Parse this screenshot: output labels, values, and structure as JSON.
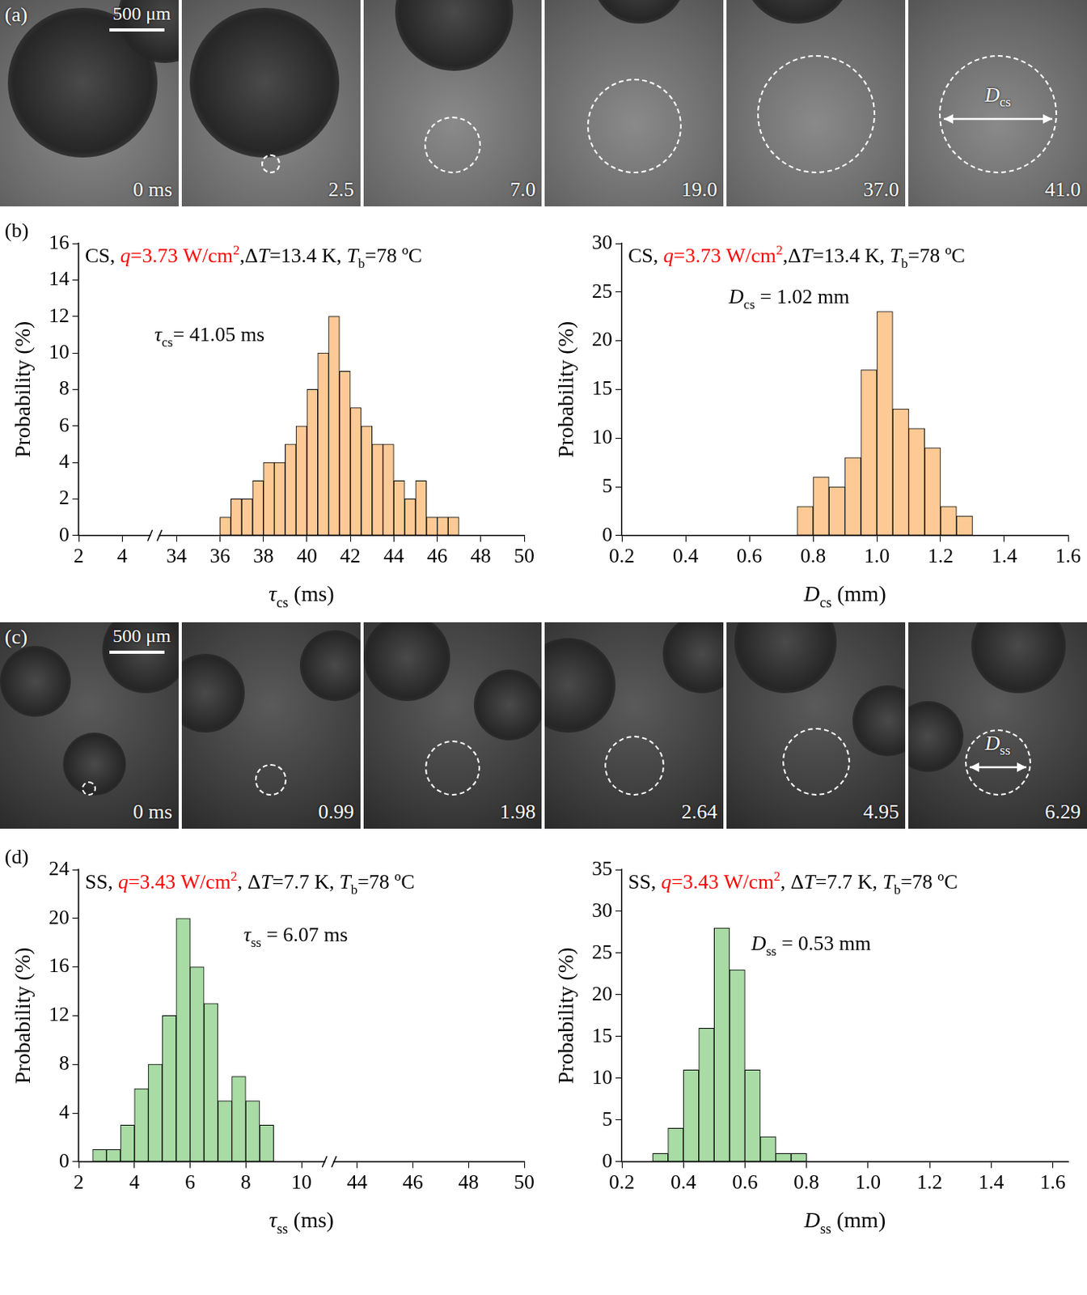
{
  "image_strips": [
    {
      "panel_label": "(a)",
      "scale_bar": "500 μm",
      "frames": [
        "0 ms",
        "2.5",
        "7.0",
        "19.0",
        "37.0",
        "41.0"
      ],
      "diameter_label": [
        {
          "text": "D",
          "italic": true
        },
        {
          "text": "cs",
          "sub": true
        }
      ]
    },
    {
      "panel_label": "(c)",
      "scale_bar": "500 μm",
      "frames": [
        "0 ms",
        "0.99",
        "1.98",
        "2.64",
        "4.95",
        "6.29"
      ],
      "diameter_label": [
        {
          "text": "D",
          "italic": true
        },
        {
          "text": "ss",
          "sub": true
        }
      ]
    }
  ],
  "chart_data": [
    {
      "type": "histogram",
      "panel_label": "(b)",
      "title": [
        "CS, ",
        {
          "text": "q",
          "italic": true,
          "color": "#ff0000"
        },
        {
          "text": "=3.73 W/cm",
          "color": "#ff0000"
        },
        {
          "text": "2",
          "sup": true,
          "color": "#ff0000"
        },
        ",Δ",
        {
          "text": "T",
          "italic": true
        },
        "=13.4 K, ",
        {
          "text": "T",
          "italic": true
        },
        {
          "text": "b",
          "sub": true
        },
        "=78 ºC"
      ],
      "annotation": [
        {
          "text": "τ",
          "italic": true
        },
        {
          "text": "cs",
          "sub": true
        },
        "= 41.05 ms"
      ],
      "x_label": [
        {
          "text": "τ",
          "italic": true
        },
        {
          "text": "cs",
          "sub": true
        },
        " (ms)"
      ],
      "y_label": "Probability (%)",
      "bins": [
        36,
        36.5,
        37,
        37.5,
        38,
        38.5,
        39,
        39.5,
        40,
        40.5,
        41,
        41.5,
        42,
        42.5,
        43,
        43.5,
        44,
        44.5,
        45,
        45.5,
        46,
        46.5,
        47
      ],
      "values": [
        1,
        2,
        2,
        3,
        4,
        4,
        5,
        6,
        8,
        10,
        12,
        9,
        7,
        6,
        5,
        5,
        3,
        2,
        3,
        1,
        1,
        1
      ],
      "color": "#fdca96",
      "xlim": [
        2,
        50
      ],
      "x_break": [
        5.5,
        33
      ],
      "xticks": [
        2,
        4,
        34,
        36,
        38,
        40,
        42,
        44,
        46,
        48,
        50
      ],
      "ylim": [
        0,
        16
      ],
      "yticks": [
        0,
        2,
        4,
        6,
        8,
        10,
        12,
        14,
        16
      ],
      "grid": false
    },
    {
      "type": "histogram",
      "title": [
        "CS, ",
        {
          "text": "q",
          "italic": true,
          "color": "#ff0000"
        },
        {
          "text": "=3.73 W/cm",
          "color": "#ff0000"
        },
        {
          "text": "2",
          "sup": true,
          "color": "#ff0000"
        },
        ",Δ",
        {
          "text": "T",
          "italic": true
        },
        "=13.4 K, ",
        {
          "text": "T",
          "italic": true
        },
        {
          "text": "b",
          "sub": true
        },
        "=78 ºC"
      ],
      "annotation": [
        {
          "text": "D",
          "italic": true
        },
        {
          "text": "cs",
          "sub": true
        },
        " = 1.02 mm"
      ],
      "x_label": [
        {
          "text": "D",
          "italic": true
        },
        {
          "text": "cs",
          "sub": true
        },
        " (mm)"
      ],
      "y_label": "Probability (%)",
      "bins": [
        0.75,
        0.8,
        0.85,
        0.9,
        0.95,
        1,
        1.05,
        1.1,
        1.15,
        1.2,
        1.25,
        1.3
      ],
      "values": [
        3,
        6,
        5,
        8,
        17,
        23,
        13,
        11,
        9,
        3,
        2
      ],
      "color": "#fdca96",
      "xlim": [
        0.2,
        1.6
      ],
      "xticks": [
        0.2,
        0.4,
        0.6,
        0.8,
        {
          "value": 1,
          "label": "1.0"
        },
        1.2,
        1.4,
        1.6
      ],
      "ylim": [
        0,
        30
      ],
      "yticks": [
        0,
        5,
        10,
        15,
        20,
        25,
        30
      ],
      "grid": false
    },
    {
      "type": "histogram",
      "panel_label": "(d)",
      "title": [
        "SS, ",
        {
          "text": "q",
          "italic": true,
          "color": "#ff0000"
        },
        {
          "text": "=3.43 W/cm",
          "color": "#ff0000"
        },
        {
          "text": "2",
          "sup": true,
          "color": "#ff0000"
        },
        ", Δ",
        {
          "text": "T",
          "italic": true
        },
        "=7.7 K, ",
        {
          "text": "T",
          "italic": true
        },
        {
          "text": "b",
          "sub": true
        },
        "=78 ºC"
      ],
      "annotation": [
        {
          "text": "τ",
          "italic": true
        },
        {
          "text": "ss",
          "sub": true
        },
        " = 6.07 ms"
      ],
      "x_label": [
        {
          "text": "τ",
          "italic": true
        },
        {
          "text": "ss",
          "sub": true
        },
        " (ms)"
      ],
      "y_label": "Probability (%)",
      "bins": [
        2.5,
        3,
        3.5,
        4,
        4.5,
        5,
        5.5,
        6,
        6.5,
        7,
        7.5,
        8,
        8.5,
        9
      ],
      "values": [
        1,
        1,
        3,
        6,
        8,
        12,
        20,
        16,
        13,
        5,
        7,
        5,
        3
      ],
      "color": "#a9dba5",
      "xlim": [
        2,
        50
      ],
      "x_break": [
        11,
        43
      ],
      "xticks": [
        2,
        4,
        6,
        8,
        10,
        44,
        46,
        48,
        50
      ],
      "ylim": [
        0,
        24
      ],
      "yticks": [
        0,
        4,
        8,
        12,
        16,
        20,
        24
      ],
      "grid": false
    },
    {
      "type": "histogram",
      "title": [
        "SS, ",
        {
          "text": "q",
          "italic": true,
          "color": "#ff0000"
        },
        {
          "text": "=3.43 W/cm",
          "color": "#ff0000"
        },
        {
          "text": "2",
          "sup": true,
          "color": "#ff0000"
        },
        ", Δ",
        {
          "text": "T",
          "italic": true
        },
        "=7.7 K, ",
        {
          "text": "T",
          "italic": true
        },
        {
          "text": "b",
          "sub": true
        },
        "=78 ºC"
      ],
      "annotation": [
        {
          "text": "D",
          "italic": true
        },
        {
          "text": "ss",
          "sub": true
        },
        " = 0.53 mm"
      ],
      "x_label": [
        {
          "text": "D",
          "italic": true
        },
        {
          "text": "ss",
          "sub": true
        },
        " (mm)"
      ],
      "y_label": "Probability (%)",
      "bins": [
        0.3,
        0.35,
        0.4,
        0.45,
        0.5,
        0.55,
        0.6,
        0.65,
        0.7,
        0.75,
        0.8
      ],
      "values": [
        1,
        4,
        11,
        16,
        28,
        23,
        11,
        3,
        1,
        1
      ],
      "color": "#a9dba5",
      "xlim": [
        0.2,
        1.65
      ],
      "xticks": [
        0.2,
        0.4,
        0.6,
        0.8,
        {
          "value": 1,
          "label": "1.0"
        },
        1.2,
        1.4,
        1.6
      ],
      "ylim": [
        0,
        35
      ],
      "yticks": [
        0,
        5,
        10,
        15,
        20,
        25,
        30,
        35
      ],
      "grid": false
    }
  ]
}
